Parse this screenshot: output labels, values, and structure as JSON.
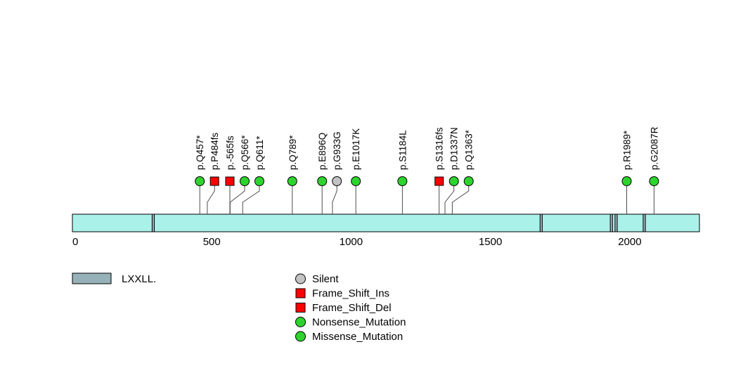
{
  "chart_data": {
    "type": "lollipop",
    "description": "Protein mutation lollipop plot with LXXLL domain motifs",
    "protein": {
      "length": 2250,
      "bar_color": "#aaf1ea",
      "bar_border": "#000000"
    },
    "x_axis": {
      "min": 0,
      "max": 2250,
      "ticks": [
        "0",
        "500",
        "1000",
        "1500",
        "2000"
      ],
      "tick_values": [
        0,
        500,
        1000,
        1500,
        2000
      ]
    },
    "domain_color": "#96b1b8",
    "domains": [
      {
        "name": "LXXLL",
        "start": 286,
        "end": 294
      },
      {
        "name": "LXXLL",
        "start": 1678,
        "end": 1686
      },
      {
        "name": "LXXLL",
        "start": 1930,
        "end": 1938
      },
      {
        "name": "LXXLL",
        "start": 1947,
        "end": 1955
      },
      {
        "name": "LXXLL",
        "start": 2048,
        "end": 2056
      }
    ],
    "mutations": [
      {
        "label": "p.Q457*",
        "pos": 457,
        "type": "Nonsense_Mutation"
      },
      {
        "label": "p.P484fs",
        "pos": 484,
        "type": "Frame_Shift_Del"
      },
      {
        "label": "p.-565fs",
        "pos": 565,
        "type": "Frame_Shift_Ins"
      },
      {
        "label": "p.Q566*",
        "pos": 566,
        "type": "Nonsense_Mutation"
      },
      {
        "label": "p.Q611*",
        "pos": 611,
        "type": "Nonsense_Mutation"
      },
      {
        "label": "p.Q789*",
        "pos": 789,
        "type": "Nonsense_Mutation"
      },
      {
        "label": "p.E896Q",
        "pos": 896,
        "type": "Missense_Mutation"
      },
      {
        "label": "p.G933G",
        "pos": 933,
        "type": "Silent"
      },
      {
        "label": "p.E1017K",
        "pos": 1017,
        "type": "Missense_Mutation"
      },
      {
        "label": "p.S1184L",
        "pos": 1184,
        "type": "Missense_Mutation"
      },
      {
        "label": "p.S1316fs",
        "pos": 1316,
        "type": "Frame_Shift_Del"
      },
      {
        "label": "p.D1337N",
        "pos": 1337,
        "type": "Missense_Mutation"
      },
      {
        "label": "p.Q1363*",
        "pos": 1363,
        "type": "Nonsense_Mutation"
      },
      {
        "label": "p.R1989*",
        "pos": 1989,
        "type": "Nonsense_Mutation"
      },
      {
        "label": "p.G2087R",
        "pos": 2087,
        "type": "Missense_Mutation"
      }
    ],
    "mutation_styles": {
      "Silent": {
        "shape": "circle",
        "color": "#c3c3c3"
      },
      "Frame_Shift_Ins": {
        "shape": "square",
        "color": "#ff0000"
      },
      "Frame_Shift_Del": {
        "shape": "square",
        "color": "#ff0000"
      },
      "Nonsense_Mutation": {
        "shape": "circle",
        "color": "#2fd32f"
      },
      "Missense_Mutation": {
        "shape": "circle",
        "color": "#2fd32f"
      }
    },
    "legend": {
      "domain": {
        "label": "LXXLL.",
        "color": "#96b1b8"
      },
      "items": [
        {
          "label": "Silent"
        },
        {
          "label": "Frame_Shift_Ins"
        },
        {
          "label": "Frame_Shift_Del"
        },
        {
          "label": "Nonsense_Mutation"
        },
        {
          "label": "Missense_Mutation"
        }
      ]
    }
  }
}
